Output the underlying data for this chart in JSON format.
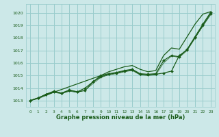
{
  "title": "Graphe pression niveau de la mer (hPa)",
  "bg_color": "#cce8e8",
  "grid_color": "#99cccc",
  "line_color": "#1a5c1a",
  "xlim": [
    -0.5,
    23.5
  ],
  "ylim": [
    1012.5,
    1020.7
  ],
  "yticks": [
    1013,
    1014,
    1015,
    1016,
    1017,
    1018,
    1019,
    1020
  ],
  "xticks": [
    0,
    1,
    2,
    3,
    4,
    5,
    6,
    7,
    8,
    9,
    10,
    11,
    12,
    13,
    14,
    15,
    16,
    17,
    18,
    19,
    20,
    21,
    22,
    23
  ],
  "series": [
    {
      "x": [
        0,
        1,
        2,
        3,
        4,
        5,
        6,
        7,
        8,
        9,
        10,
        11,
        12,
        13,
        14,
        15,
        16,
        17,
        18,
        19,
        20,
        21,
        22,
        23
      ],
      "y": [
        1013.0,
        1013.2,
        1013.5,
        1013.7,
        1013.6,
        1013.8,
        1013.7,
        1013.8,
        1014.5,
        1014.9,
        1015.1,
        1015.2,
        1015.35,
        1015.45,
        1015.1,
        1015.05,
        1015.1,
        1015.2,
        1015.35,
        1016.6,
        1017.05,
        1018.0,
        1019.0,
        1019.95
      ],
      "lw": 0.9,
      "marker": true
    },
    {
      "x": [
        0,
        1,
        2,
        3,
        4,
        5,
        6,
        7,
        8,
        9,
        10,
        11,
        12,
        13,
        14,
        15,
        16,
        17,
        18,
        19,
        20,
        21,
        22,
        23
      ],
      "y": [
        1013.0,
        1013.2,
        1013.5,
        1013.75,
        1013.6,
        1013.85,
        1013.7,
        1014.0,
        1014.5,
        1015.0,
        1015.15,
        1015.25,
        1015.4,
        1015.5,
        1015.15,
        1015.1,
        1015.15,
        1016.2,
        1016.6,
        1016.5,
        1017.1,
        1018.1,
        1019.1,
        1020.05
      ],
      "lw": 0.9,
      "marker": true
    },
    {
      "x": [
        0,
        9,
        10,
        11,
        12,
        13,
        14,
        15,
        16,
        17,
        18,
        19,
        20,
        21,
        22,
        23
      ],
      "y": [
        1013.0,
        1015.0,
        1015.3,
        1015.5,
        1015.7,
        1015.8,
        1015.5,
        1015.3,
        1015.4,
        1016.6,
        1017.2,
        1017.1,
        1018.1,
        1019.1,
        1019.9,
        1020.1
      ],
      "lw": 0.9,
      "marker": false
    },
    {
      "x": [
        0,
        1,
        2,
        3,
        4,
        5,
        6,
        7,
        8,
        9,
        10,
        11,
        12,
        13,
        14,
        15,
        16,
        17,
        18,
        19,
        20,
        21,
        22,
        23
      ],
      "y": [
        1013.0,
        1013.15,
        1013.4,
        1013.65,
        1013.55,
        1013.75,
        1013.65,
        1013.85,
        1014.35,
        1014.85,
        1015.05,
        1015.15,
        1015.3,
        1015.4,
        1015.05,
        1015.0,
        1015.05,
        1016.0,
        1016.55,
        1016.45,
        1017.0,
        1018.0,
        1018.95,
        1019.85
      ],
      "lw": 0.5,
      "marker": false
    }
  ]
}
